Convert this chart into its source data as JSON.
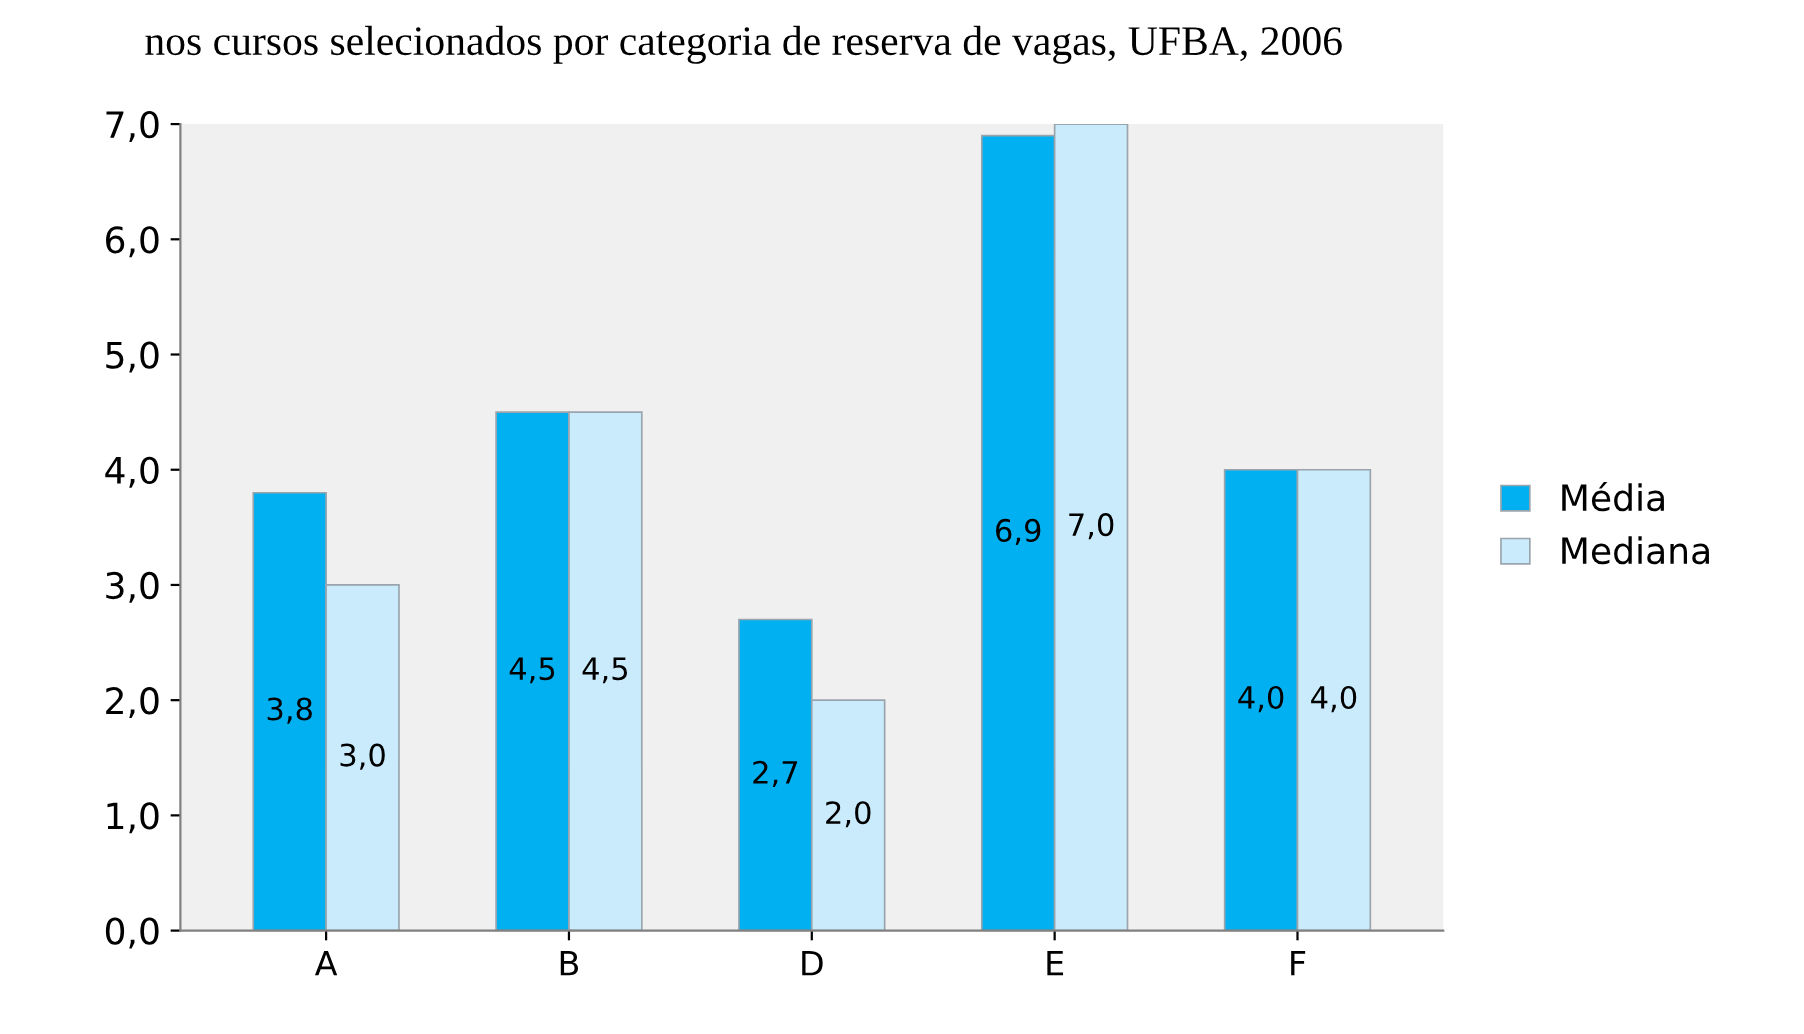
{
  "chart_data": {
    "type": "bar",
    "title": "nos cursos selecionados por categoria de reserva de vagas, UFBA, 2006",
    "categories": [
      "A",
      "B",
      "D",
      "E",
      "F"
    ],
    "series": [
      {
        "name": "Média",
        "color": "#00b0f0",
        "values": [
          3.8,
          4.5,
          2.7,
          6.9,
          4.0
        ],
        "value_labels": [
          "3,8",
          "4,5",
          "2,7",
          "6,9",
          "4,0"
        ]
      },
      {
        "name": "Mediana",
        "color": "#c9ebfb",
        "values": [
          3.0,
          4.5,
          2.0,
          7.0,
          4.0
        ],
        "value_labels": [
          "3,0",
          "4,5",
          "2,0",
          "7,0",
          "4,0"
        ]
      }
    ],
    "ylim": [
      0,
      7
    ],
    "yticks": [
      {
        "value": 0,
        "label": "0,0"
      },
      {
        "value": 1,
        "label": "1,0"
      },
      {
        "value": 2,
        "label": "2,0"
      },
      {
        "value": 3,
        "label": "3,0"
      },
      {
        "value": 4,
        "label": "4,0"
      },
      {
        "value": 5,
        "label": "5,0"
      },
      {
        "value": 6,
        "label": "6,0"
      },
      {
        "value": 7,
        "label": "7,0"
      }
    ],
    "grid": false,
    "legend": "right"
  }
}
